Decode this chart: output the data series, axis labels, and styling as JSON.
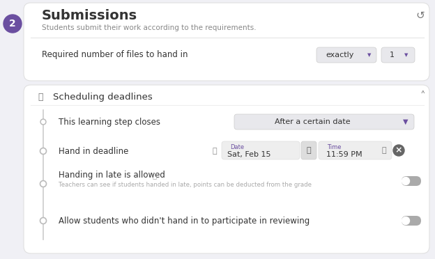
{
  "bg_color": "#f0f0f5",
  "title": "Submissions",
  "subtitle": "Students submit their work according to the requirements.",
  "circle_color": "#6b4fa0",
  "circle_number": "2",
  "required_label": "Required number of files to hand in",
  "exactly_label": "exactly",
  "one_label": "1",
  "scheduling_label": "Scheduling deadlines",
  "closes_label": "This learning step closes",
  "closes_value": "After a certain date",
  "deadline_label": "Hand in deadline",
  "date_label": "Date",
  "date_value": "Sat, Feb 15",
  "time_label": "Time",
  "time_value": "11:59 PM",
  "late_title": "Handing in late is allowed",
  "late_subtitle": "Teachers can see if students handed in late, points can be deducted from the grade",
  "review_label": "Allow students who didn't hand in to participate in reviewing",
  "purple": "#6b4fa0",
  "gray_text": "#888888",
  "dark_text": "#333333",
  "dropdown_bg": "#e8e8ec",
  "date_box_bg": "#eeeeee"
}
